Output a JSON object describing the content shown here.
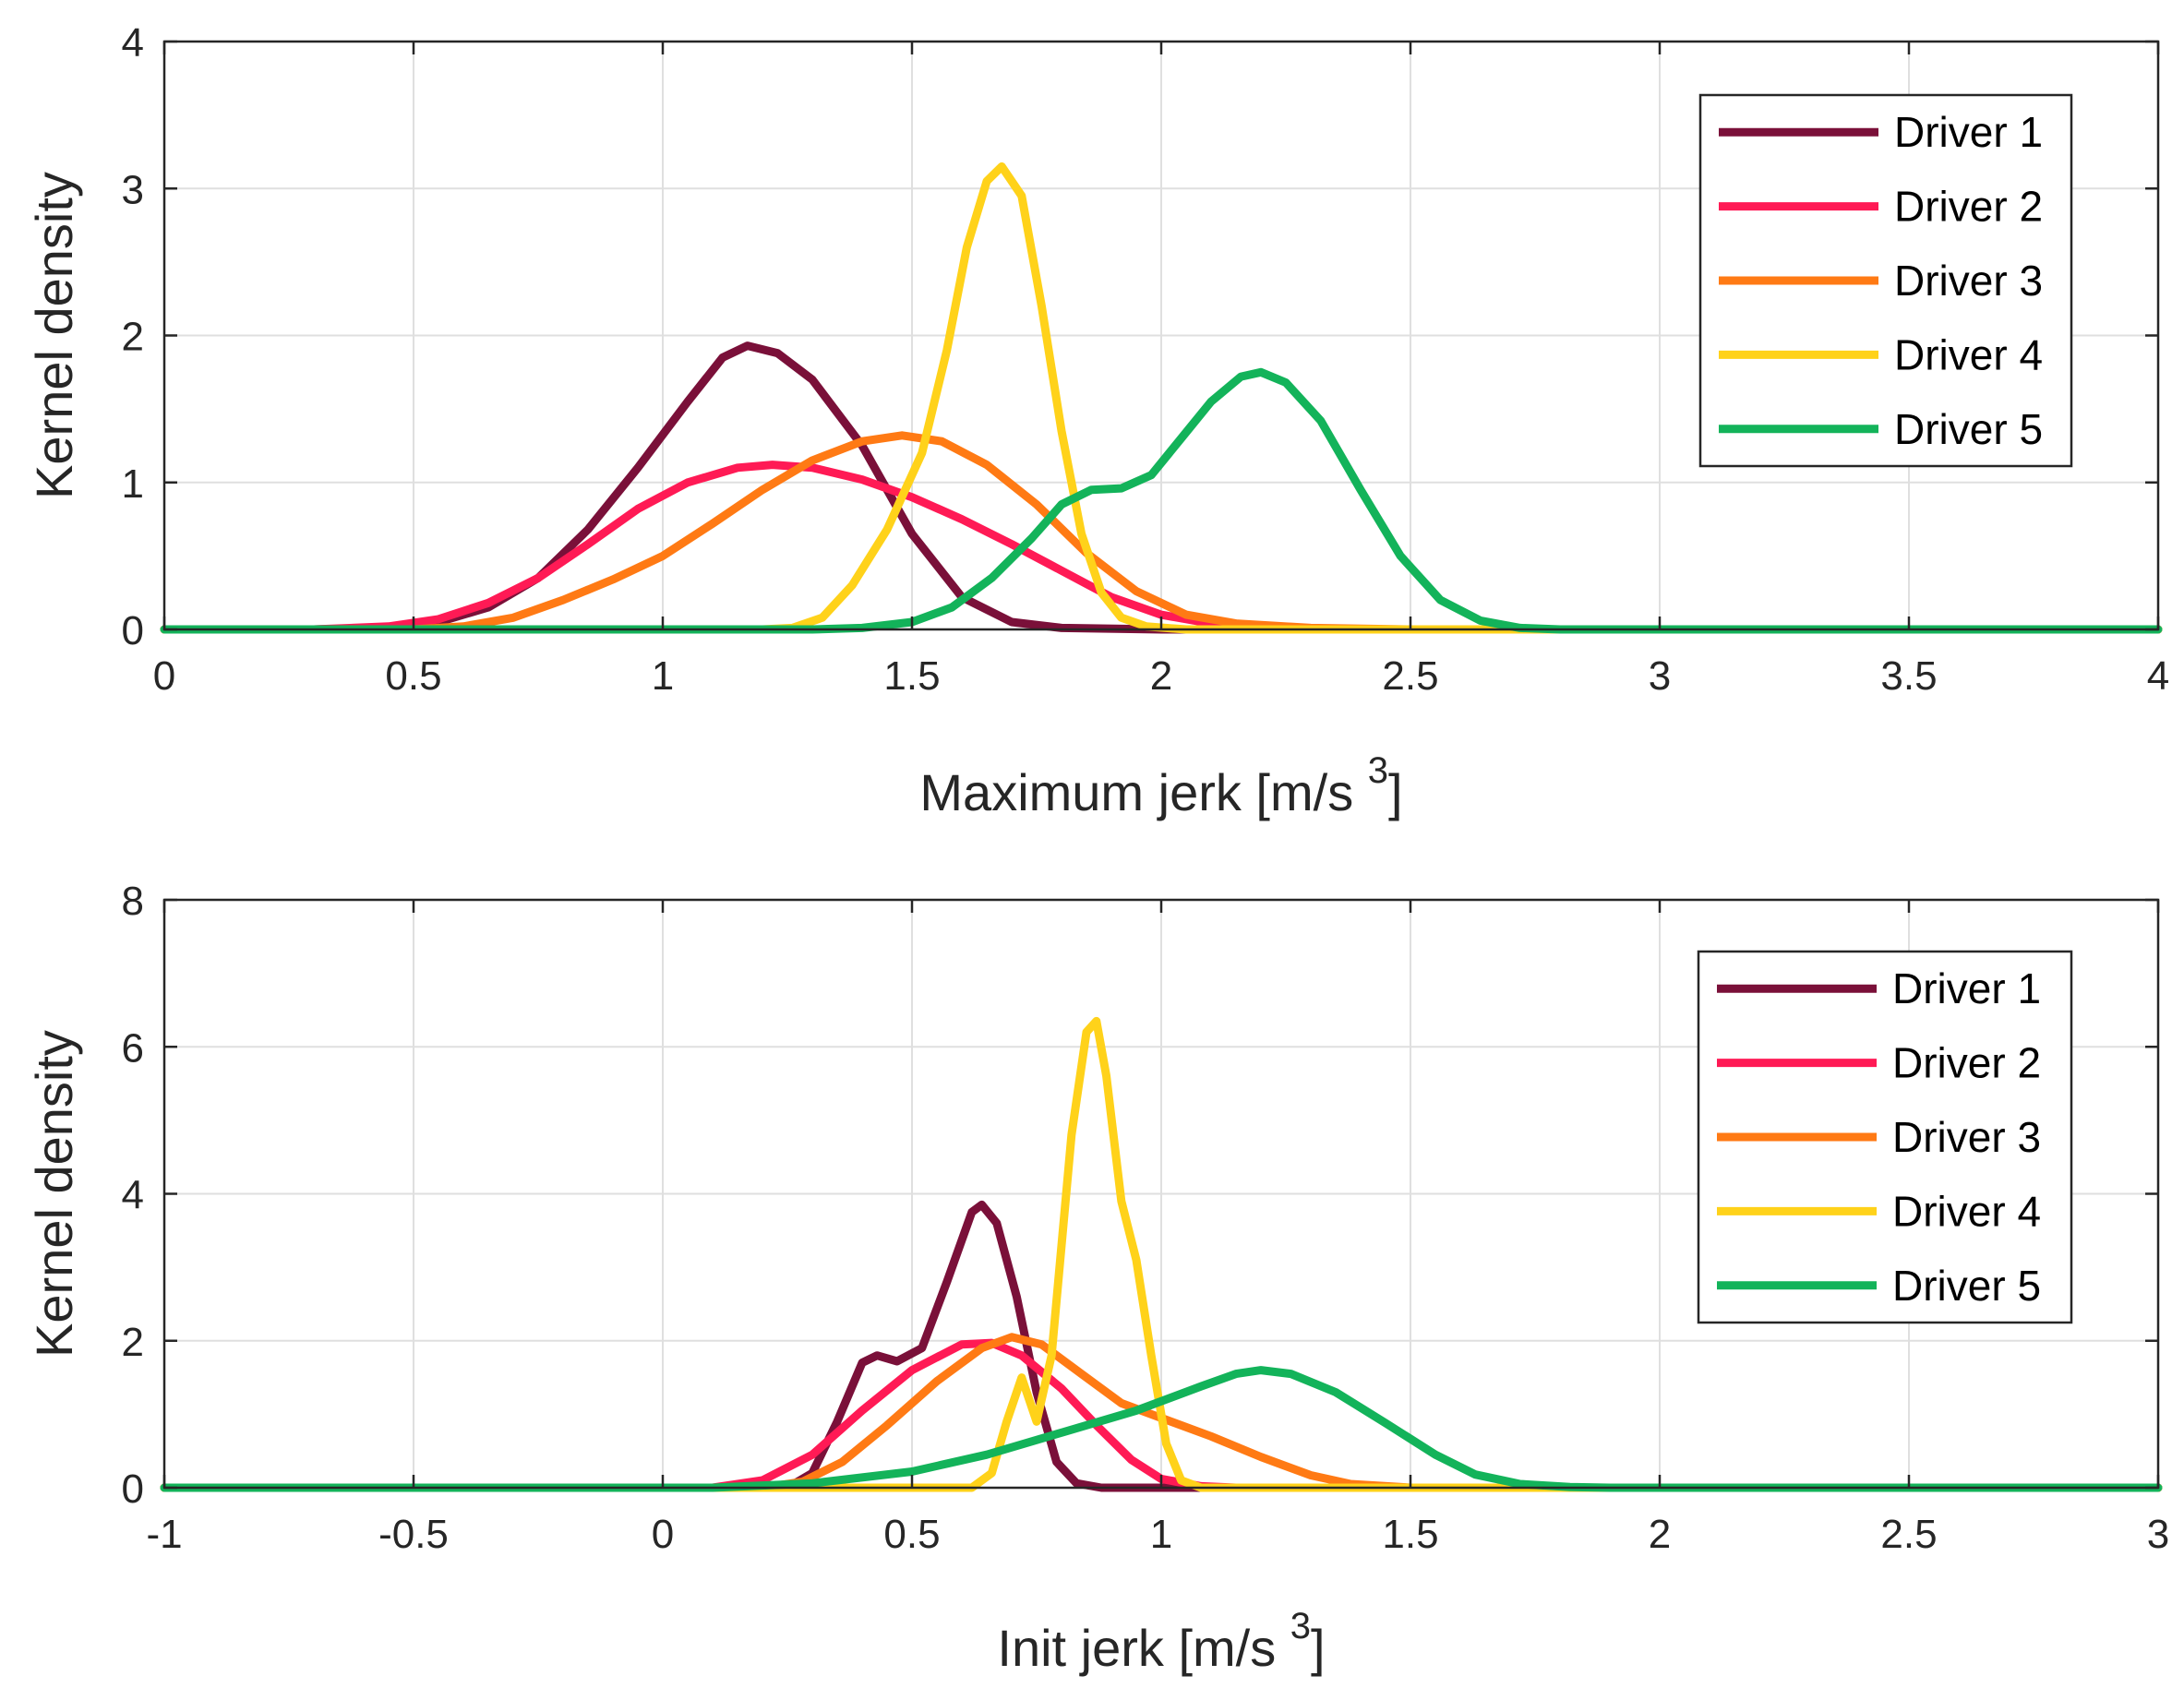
{
  "figure": {
    "charts": [
      "kde-max-jerk",
      "kde-init-jerk"
    ]
  },
  "chart_data": [
    {
      "id": "kde-max-jerk",
      "type": "line",
      "title": "",
      "xlabel": "Maximum jerk [m/s",
      "xlabel_sup": "3",
      "xlabel_end": "]",
      "ylabel": "Kernel density",
      "xlim": [
        0,
        4
      ],
      "ylim": [
        0,
        4
      ],
      "xticks": [
        0,
        0.5,
        1,
        1.5,
        2,
        2.5,
        3,
        3.5,
        4
      ],
      "xtick_labels": [
        "0",
        "0.5",
        "1",
        "1.5",
        "2",
        "2.5",
        "3",
        "3.5",
        "4"
      ],
      "yticks": [
        0,
        1,
        2,
        3,
        4
      ],
      "ytick_labels": [
        "0",
        "1",
        "2",
        "3",
        "4"
      ],
      "grid": true,
      "legend": "top-right",
      "series": [
        {
          "name": "Driver 1",
          "color": "#7a1039",
          "points": [
            [
              0,
              0
            ],
            [
              0.3,
              0
            ],
            [
              0.45,
              0.01
            ],
            [
              0.55,
              0.05
            ],
            [
              0.65,
              0.15
            ],
            [
              0.75,
              0.35
            ],
            [
              0.85,
              0.68
            ],
            [
              0.95,
              1.1
            ],
            [
              1.05,
              1.55
            ],
            [
              1.12,
              1.85
            ],
            [
              1.17,
              1.93
            ],
            [
              1.23,
              1.88
            ],
            [
              1.3,
              1.7
            ],
            [
              1.4,
              1.25
            ],
            [
              1.5,
              0.65
            ],
            [
              1.6,
              0.22
            ],
            [
              1.7,
              0.05
            ],
            [
              1.8,
              0.01
            ],
            [
              2.0,
              0
            ],
            [
              4,
              0
            ]
          ]
        },
        {
          "name": "Driver 2",
          "color": "#ff1a55",
          "points": [
            [
              0,
              0
            ],
            [
              0.3,
              0
            ],
            [
              0.45,
              0.02
            ],
            [
              0.55,
              0.07
            ],
            [
              0.65,
              0.18
            ],
            [
              0.75,
              0.35
            ],
            [
              0.85,
              0.58
            ],
            [
              0.95,
              0.82
            ],
            [
              1.05,
              1.0
            ],
            [
              1.15,
              1.1
            ],
            [
              1.22,
              1.12
            ],
            [
              1.3,
              1.1
            ],
            [
              1.4,
              1.02
            ],
            [
              1.5,
              0.9
            ],
            [
              1.6,
              0.75
            ],
            [
              1.7,
              0.58
            ],
            [
              1.8,
              0.4
            ],
            [
              1.9,
              0.22
            ],
            [
              2.0,
              0.1
            ],
            [
              2.1,
              0.04
            ],
            [
              2.2,
              0.01
            ],
            [
              2.4,
              0
            ],
            [
              4,
              0
            ]
          ]
        },
        {
          "name": "Driver 3",
          "color": "#ff7a14",
          "points": [
            [
              0,
              0
            ],
            [
              0.5,
              0
            ],
            [
              0.6,
              0.02
            ],
            [
              0.7,
              0.08
            ],
            [
              0.8,
              0.2
            ],
            [
              0.9,
              0.34
            ],
            [
              1.0,
              0.5
            ],
            [
              1.1,
              0.72
            ],
            [
              1.2,
              0.95
            ],
            [
              1.3,
              1.15
            ],
            [
              1.4,
              1.28
            ],
            [
              1.48,
              1.32
            ],
            [
              1.56,
              1.28
            ],
            [
              1.65,
              1.12
            ],
            [
              1.75,
              0.85
            ],
            [
              1.85,
              0.52
            ],
            [
              1.95,
              0.26
            ],
            [
              2.05,
              0.1
            ],
            [
              2.15,
              0.04
            ],
            [
              2.3,
              0.01
            ],
            [
              2.5,
              0
            ],
            [
              4,
              0
            ]
          ]
        },
        {
          "name": "Driver 4",
          "color": "#ffd21a",
          "points": [
            [
              0,
              0
            ],
            [
              1.2,
              0
            ],
            [
              1.26,
              0.01
            ],
            [
              1.32,
              0.08
            ],
            [
              1.38,
              0.3
            ],
            [
              1.45,
              0.68
            ],
            [
              1.52,
              1.2
            ],
            [
              1.57,
              1.9
            ],
            [
              1.61,
              2.6
            ],
            [
              1.65,
              3.05
            ],
            [
              1.68,
              3.15
            ],
            [
              1.72,
              2.95
            ],
            [
              1.76,
              2.2
            ],
            [
              1.8,
              1.35
            ],
            [
              1.84,
              0.65
            ],
            [
              1.88,
              0.25
            ],
            [
              1.92,
              0.08
            ],
            [
              1.97,
              0.02
            ],
            [
              2.05,
              0
            ],
            [
              4,
              0
            ]
          ]
        },
        {
          "name": "Driver 5",
          "color": "#13b35a",
          "points": [
            [
              0,
              0
            ],
            [
              1.3,
              0
            ],
            [
              1.4,
              0.01
            ],
            [
              1.5,
              0.05
            ],
            [
              1.58,
              0.15
            ],
            [
              1.66,
              0.35
            ],
            [
              1.74,
              0.62
            ],
            [
              1.8,
              0.85
            ],
            [
              1.86,
              0.95
            ],
            [
              1.92,
              0.96
            ],
            [
              1.98,
              1.05
            ],
            [
              2.04,
              1.3
            ],
            [
              2.1,
              1.55
            ],
            [
              2.16,
              1.72
            ],
            [
              2.2,
              1.75
            ],
            [
              2.25,
              1.68
            ],
            [
              2.32,
              1.42
            ],
            [
              2.4,
              0.95
            ],
            [
              2.48,
              0.5
            ],
            [
              2.56,
              0.2
            ],
            [
              2.64,
              0.06
            ],
            [
              2.72,
              0.01
            ],
            [
              2.8,
              0
            ],
            [
              4,
              0
            ]
          ]
        }
      ]
    },
    {
      "id": "kde-init-jerk",
      "type": "line",
      "title": "",
      "xlabel": "Init jerk [m/s",
      "xlabel_sup": "3",
      "xlabel_end": "]",
      "ylabel": "Kernel density",
      "xlim": [
        -1,
        3
      ],
      "ylim": [
        0,
        8
      ],
      "xticks": [
        -1,
        -0.5,
        0,
        0.5,
        1,
        1.5,
        2,
        2.5,
        3
      ],
      "xtick_labels": [
        "-1",
        "-0.5",
        "0",
        "0.5",
        "1",
        "1.5",
        "2",
        "2.5",
        "3"
      ],
      "yticks": [
        0,
        2,
        4,
        6,
        8
      ],
      "ytick_labels": [
        "0",
        "2",
        "4",
        "6",
        "8"
      ],
      "grid": true,
      "legend": "right",
      "series": [
        {
          "name": "Driver 1",
          "color": "#7a1039",
          "points": [
            [
              -1,
              0
            ],
            [
              0.25,
              0
            ],
            [
              0.3,
              0.2
            ],
            [
              0.35,
              0.9
            ],
            [
              0.4,
              1.7
            ],
            [
              0.43,
              1.8
            ],
            [
              0.47,
              1.72
            ],
            [
              0.52,
              1.9
            ],
            [
              0.57,
              2.8
            ],
            [
              0.62,
              3.75
            ],
            [
              0.64,
              3.85
            ],
            [
              0.67,
              3.6
            ],
            [
              0.71,
              2.6
            ],
            [
              0.75,
              1.3
            ],
            [
              0.79,
              0.35
            ],
            [
              0.83,
              0.06
            ],
            [
              0.88,
              0
            ],
            [
              3,
              0
            ]
          ]
        },
        {
          "name": "Driver 2",
          "color": "#ff1a55",
          "points": [
            [
              -1,
              0
            ],
            [
              0.1,
              0
            ],
            [
              0.2,
              0.1
            ],
            [
              0.3,
              0.45
            ],
            [
              0.4,
              1.05
            ],
            [
              0.5,
              1.6
            ],
            [
              0.6,
              1.95
            ],
            [
              0.66,
              1.97
            ],
            [
              0.72,
              1.8
            ],
            [
              0.8,
              1.35
            ],
            [
              0.87,
              0.85
            ],
            [
              0.94,
              0.38
            ],
            [
              1.0,
              0.12
            ],
            [
              1.08,
              0.02
            ],
            [
              1.15,
              0
            ],
            [
              3,
              0
            ]
          ]
        },
        {
          "name": "Driver 3",
          "color": "#ff7a14",
          "points": [
            [
              -1,
              0
            ],
            [
              0.2,
              0
            ],
            [
              0.28,
              0.08
            ],
            [
              0.36,
              0.35
            ],
            [
              0.45,
              0.85
            ],
            [
              0.55,
              1.45
            ],
            [
              0.64,
              1.9
            ],
            [
              0.7,
              2.05
            ],
            [
              0.76,
              1.95
            ],
            [
              0.84,
              1.55
            ],
            [
              0.92,
              1.15
            ],
            [
              1.0,
              0.95
            ],
            [
              1.1,
              0.7
            ],
            [
              1.2,
              0.42
            ],
            [
              1.3,
              0.17
            ],
            [
              1.38,
              0.05
            ],
            [
              1.5,
              0
            ],
            [
              3,
              0
            ]
          ]
        },
        {
          "name": "Driver 4",
          "color": "#ffd21a",
          "points": [
            [
              -1,
              0
            ],
            [
              0.62,
              0
            ],
            [
              0.66,
              0.2
            ],
            [
              0.69,
              0.9
            ],
            [
              0.72,
              1.5
            ],
            [
              0.75,
              0.9
            ],
            [
              0.78,
              1.8
            ],
            [
              0.82,
              4.8
            ],
            [
              0.85,
              6.2
            ],
            [
              0.87,
              6.35
            ],
            [
              0.89,
              5.6
            ],
            [
              0.92,
              3.9
            ],
            [
              0.95,
              3.1
            ],
            [
              0.98,
              1.8
            ],
            [
              1.01,
              0.6
            ],
            [
              1.04,
              0.1
            ],
            [
              1.08,
              0
            ],
            [
              3,
              0
            ]
          ]
        },
        {
          "name": "Driver 5",
          "color": "#13b35a",
          "points": [
            [
              -1,
              0
            ],
            [
              0.1,
              0
            ],
            [
              0.3,
              0.06
            ],
            [
              0.5,
              0.22
            ],
            [
              0.65,
              0.45
            ],
            [
              0.8,
              0.75
            ],
            [
              0.95,
              1.05
            ],
            [
              1.08,
              1.38
            ],
            [
              1.15,
              1.55
            ],
            [
              1.2,
              1.6
            ],
            [
              1.26,
              1.55
            ],
            [
              1.35,
              1.3
            ],
            [
              1.45,
              0.88
            ],
            [
              1.55,
              0.45
            ],
            [
              1.63,
              0.18
            ],
            [
              1.72,
              0.05
            ],
            [
              1.82,
              0.01
            ],
            [
              1.9,
              0
            ],
            [
              3,
              0
            ]
          ]
        }
      ]
    }
  ]
}
